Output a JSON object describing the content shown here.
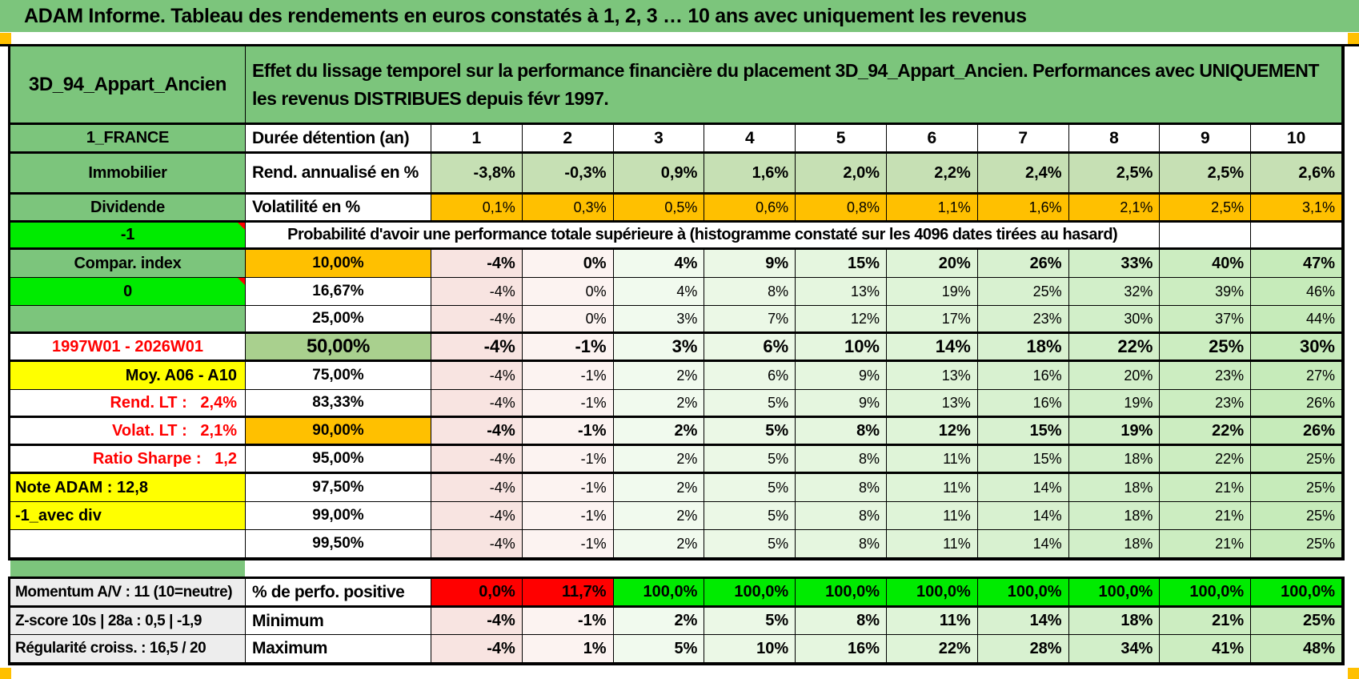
{
  "title": "ADAM Informe. Tableau des rendements en euros constatés à 1, 2, 3 … 10 ans avec uniquement les revenus",
  "header": {
    "asset_name": "3D_94_Appart_Ancien",
    "description": "Effet du lissage temporel sur la performance financière du placement 3D_94_Appart_Ancien. Performances avec UNIQUEMENT les revenus DISTRIBUES depuis févr 1997."
  },
  "columns": [
    "1",
    "2",
    "3",
    "4",
    "5",
    "6",
    "7",
    "8",
    "9",
    "10"
  ],
  "duration_row": {
    "label_a": "1_FRANCE",
    "label_b": "Durée détention (an)"
  },
  "rend_row": {
    "label_a": "Immobilier",
    "label_b": "Rend. annualisé en %",
    "values": [
      "-3,8%",
      "-0,3%",
      "0,9%",
      "1,6%",
      "2,0%",
      "2,2%",
      "2,4%",
      "2,5%",
      "2,5%",
      "2,6%"
    ]
  },
  "volat_row": {
    "label_a": "Dividende",
    "label_b": "Volatilité en %",
    "values": [
      "0,1%",
      "0,3%",
      "0,5%",
      "0,6%",
      "0,8%",
      "1,1%",
      "1,6%",
      "2,1%",
      "2,5%",
      "3,1%"
    ]
  },
  "proba_header": {
    "label_a": "-1",
    "text": "Probabilité d'avoir une performance totale supérieure à (histogramme constaté sur les 4096 dates tirées au hasard)"
  },
  "probability_rows": [
    {
      "label_a": "Compar. index",
      "a_style": "green",
      "pct": "10,00%",
      "pct_bg": "orange",
      "bold": true,
      "values": [
        "-4%",
        "0%",
        "4%",
        "9%",
        "15%",
        "20%",
        "26%",
        "33%",
        "40%",
        "47%"
      ]
    },
    {
      "label_a": "0",
      "a_style": "lime",
      "has_note": true,
      "pct": "16,67%",
      "pct_bg": "white",
      "values": [
        "-4%",
        "0%",
        "4%",
        "8%",
        "13%",
        "19%",
        "25%",
        "32%",
        "39%",
        "46%"
      ]
    },
    {
      "label_a": "",
      "a_style": "green",
      "pct": "25,00%",
      "pct_bg": "white",
      "thick_bottom": true,
      "values": [
        "-4%",
        "0%",
        "3%",
        "7%",
        "12%",
        "17%",
        "23%",
        "30%",
        "37%",
        "44%"
      ]
    },
    {
      "label_a": "1997W01 - 2026W01",
      "a_style": "red-center",
      "pct": "50,00%",
      "pct_bg": "mid_green",
      "bold": true,
      "big": true,
      "thick_bottom": true,
      "values": [
        "-4%",
        "-1%",
        "3%",
        "6%",
        "10%",
        "14%",
        "18%",
        "22%",
        "25%",
        "30%"
      ]
    },
    {
      "label_a": "Moy. A06 - A10",
      "a_style": "yellow-right",
      "pct": "75,00%",
      "pct_bg": "white",
      "values": [
        "-4%",
        "-1%",
        "2%",
        "6%",
        "9%",
        "13%",
        "16%",
        "20%",
        "23%",
        "27%"
      ]
    },
    {
      "label_a": "Rend. LT :   2,4%",
      "a_style": "red-right",
      "pct": "83,33%",
      "pct_bg": "white",
      "thick_bottom": true,
      "values": [
        "-4%",
        "-1%",
        "2%",
        "5%",
        "9%",
        "13%",
        "16%",
        "19%",
        "23%",
        "26%"
      ]
    },
    {
      "label_a": "Volat. LT :   2,1%",
      "a_style": "red-right",
      "pct": "90,00%",
      "pct_bg": "orange",
      "bold": true,
      "thick_bottom": true,
      "values": [
        "-4%",
        "-1%",
        "2%",
        "5%",
        "8%",
        "12%",
        "15%",
        "19%",
        "22%",
        "26%"
      ]
    },
    {
      "label_a": "Ratio Sharpe :   1,2",
      "a_style": "red-right",
      "pct": "95,00%",
      "pct_bg": "white",
      "thick_bottom": true,
      "values": [
        "-4%",
        "-1%",
        "2%",
        "5%",
        "8%",
        "11%",
        "15%",
        "18%",
        "22%",
        "25%"
      ]
    },
    {
      "label_a": "Note ADAM : 12,8",
      "a_style": "yellow-left",
      "pct": "97,50%",
      "pct_bg": "white",
      "values": [
        "-4%",
        "-1%",
        "2%",
        "5%",
        "8%",
        "11%",
        "14%",
        "18%",
        "21%",
        "25%"
      ]
    },
    {
      "label_a": "-1_avec div",
      "a_style": "yellow-left",
      "pct": "99,00%",
      "pct_bg": "white",
      "values": [
        "-4%",
        "-1%",
        "2%",
        "5%",
        "8%",
        "11%",
        "14%",
        "18%",
        "21%",
        "25%"
      ]
    },
    {
      "label_a": "",
      "a_style": "white",
      "pct": "99,50%",
      "pct_bg": "white",
      "values": [
        "-4%",
        "-1%",
        "2%",
        "5%",
        "8%",
        "11%",
        "14%",
        "18%",
        "21%",
        "25%"
      ]
    }
  ],
  "bottom_rows": [
    {
      "label_a": "Momentum A/V : 11 (10=neutre)",
      "label_b": "% de perfo. positive",
      "thick_bottom": true,
      "values": [
        "0,0%",
        "11,7%",
        "100,0%",
        "100,0%",
        "100,0%",
        "100,0%",
        "100,0%",
        "100,0%",
        "100,0%",
        "100,0%"
      ],
      "cell_colors": [
        "red",
        "red",
        "lime",
        "lime",
        "lime",
        "lime",
        "lime",
        "lime",
        "lime",
        "lime"
      ]
    },
    {
      "label_a": "Z-score 10s | 28a : 0,5 | -1,9",
      "label_b": "Minimum",
      "values": [
        "-4%",
        "-1%",
        "2%",
        "5%",
        "8%",
        "11%",
        "14%",
        "18%",
        "21%",
        "25%"
      ]
    },
    {
      "label_a": "Régularité croiss. : 16,5 / 20",
      "label_b": "Maximum",
      "values": [
        "-4%",
        "1%",
        "5%",
        "10%",
        "16%",
        "22%",
        "28%",
        "34%",
        "41%",
        "48%"
      ]
    }
  ],
  "colors": {
    "green": "#7CC57C",
    "light_green": "#C6E0B4",
    "mid_green": "#A9D08E",
    "orange": "#FFC000",
    "lime": "#00EB00",
    "red": "#FF0000",
    "yellow": "#FFFF00",
    "gray": "#EDEDED",
    "red_text": "#FF0000",
    "white": "#FFFFFF",
    "col_gradient": [
      "#F8E4E1",
      "#FCF3F1",
      "#F1FAEE",
      "#EBF8E6",
      "#E5F6DF",
      "#DFF4D8",
      "#D8F1D0",
      "#D2EFC9",
      "#CCEDC1",
      "#C6EBBA"
    ]
  }
}
